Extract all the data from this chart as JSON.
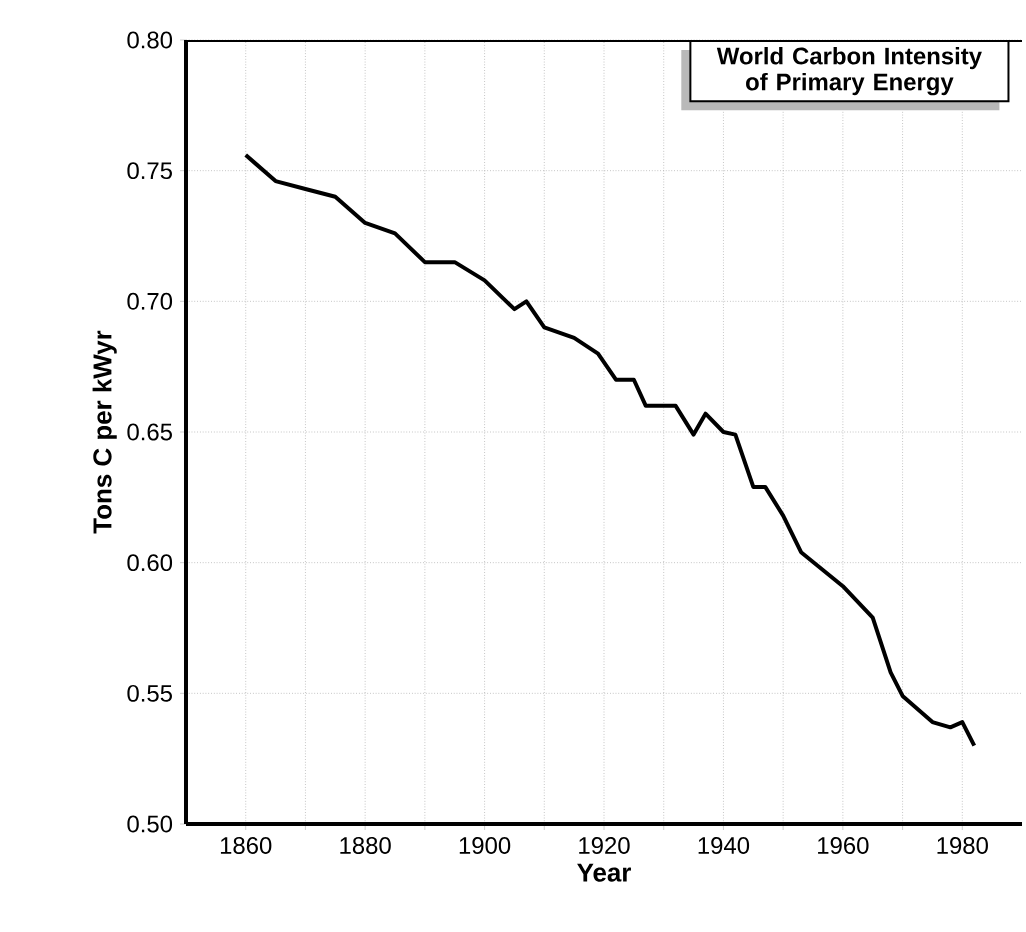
{
  "chart_data": {
    "type": "line",
    "title": "World Carbon Intensity of Primary Energy",
    "xlabel": "Year",
    "ylabel": "Tons C per kWyr",
    "x": [
      1860,
      1865,
      1870,
      1875,
      1880,
      1885,
      1890,
      1895,
      1900,
      1905,
      1907,
      1910,
      1915,
      1919,
      1922,
      1925,
      1927,
      1932,
      1935,
      1937,
      1940,
      1942,
      1945,
      1947,
      1950,
      1953,
      1960,
      1965,
      1968,
      1970,
      1975,
      1978,
      1980,
      1982
    ],
    "values": [
      0.756,
      0.746,
      0.743,
      0.74,
      0.73,
      0.726,
      0.715,
      0.715,
      0.708,
      0.697,
      0.7,
      0.69,
      0.686,
      0.68,
      0.67,
      0.67,
      0.66,
      0.66,
      0.649,
      0.657,
      0.65,
      0.649,
      0.629,
      0.629,
      0.618,
      0.604,
      0.591,
      0.579,
      0.558,
      0.549,
      0.539,
      0.537,
      0.539,
      0.53
    ],
    "color": "#000000",
    "marker": "none",
    "line_style": "solid",
    "grid": true,
    "xlim": [
      1850,
      1990
    ],
    "ylim": [
      0.5,
      0.8
    ],
    "xticks": [
      {
        "value": 1860,
        "label": "1860"
      },
      {
        "value": 1870,
        "label": null
      },
      {
        "value": 1880,
        "label": "1880"
      },
      {
        "value": 1890,
        "label": null
      },
      {
        "value": 1900,
        "label": "1900"
      },
      {
        "value": 1910,
        "label": null
      },
      {
        "value": 1920,
        "label": "1920"
      },
      {
        "value": 1930,
        "label": null
      },
      {
        "value": 1940,
        "label": "1940"
      },
      {
        "value": 1950,
        "label": null
      },
      {
        "value": 1960,
        "label": "1960"
      },
      {
        "value": 1970,
        "label": null
      },
      {
        "value": 1980,
        "label": "1980"
      }
    ],
    "yticks": [
      {
        "value": 0.5,
        "label": "0.50"
      },
      {
        "value": 0.55,
        "label": "0.55"
      },
      {
        "value": 0.6,
        "label": "0.60"
      },
      {
        "value": 0.65,
        "label": "0.65"
      },
      {
        "value": 0.7,
        "label": "0.70"
      },
      {
        "value": 0.75,
        "label": "0.75"
      },
      {
        "value": 0.8,
        "label": "0.80"
      }
    ]
  }
}
